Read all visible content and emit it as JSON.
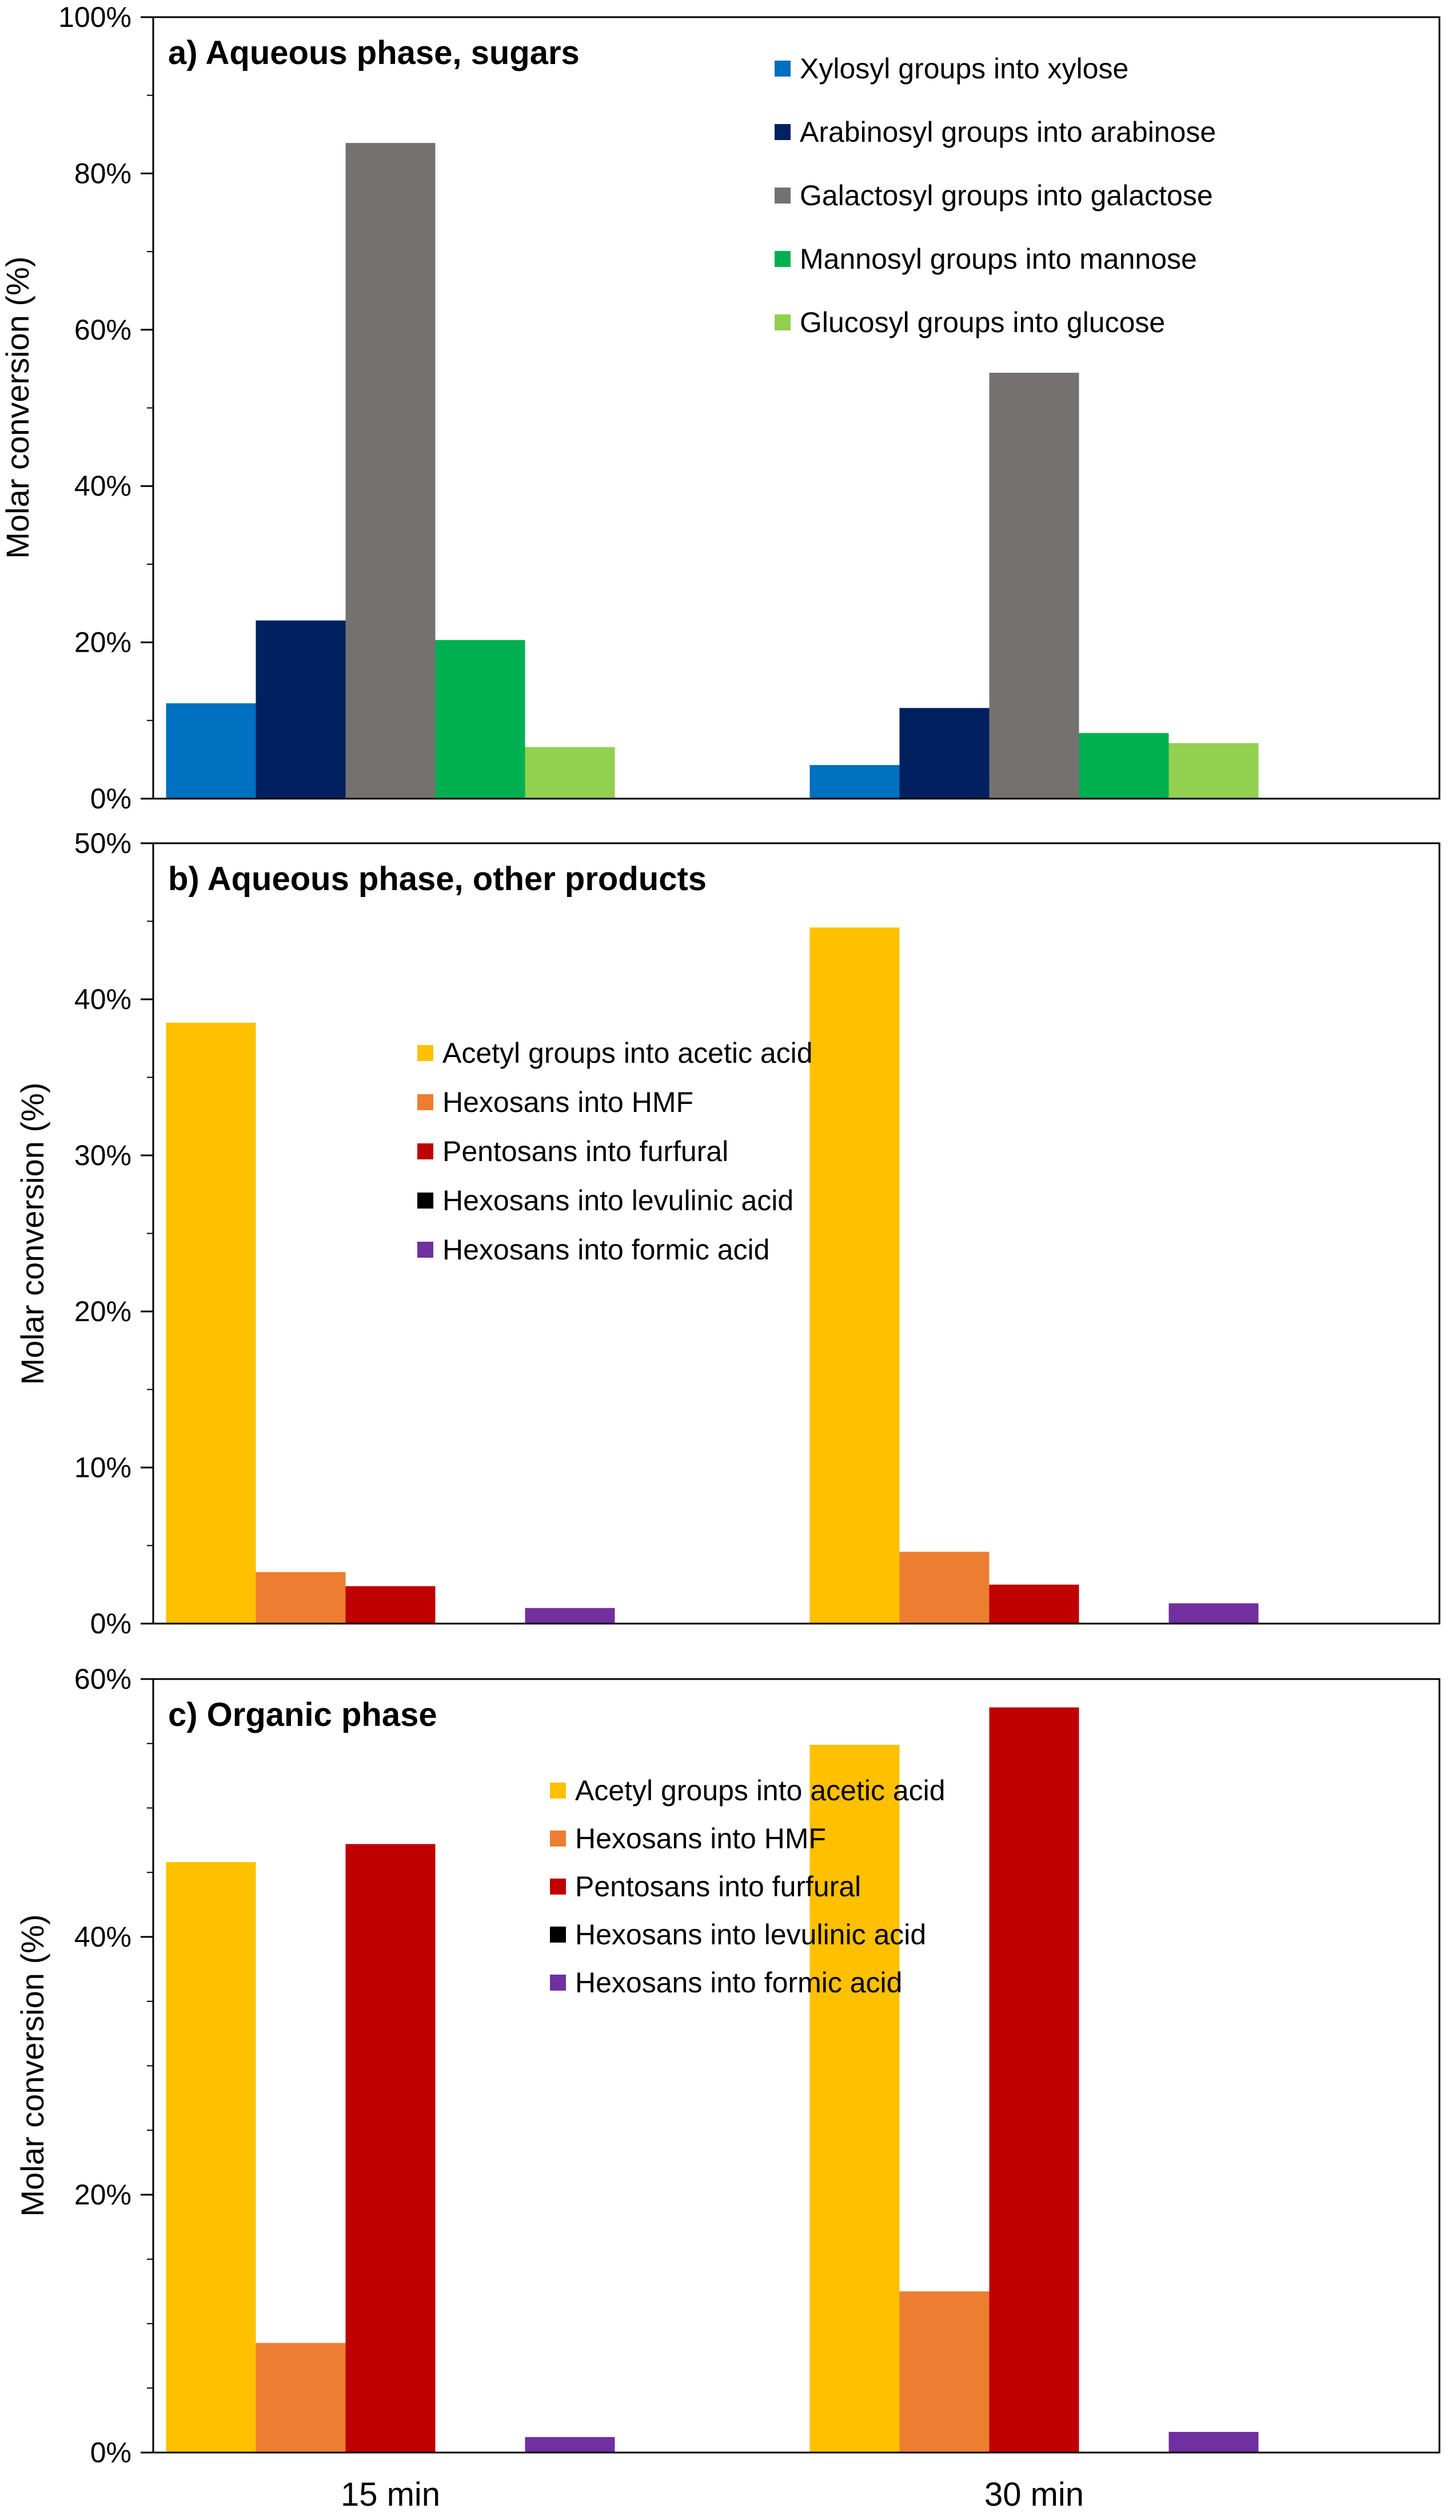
{
  "chart_data": [
    {
      "type": "bar",
      "title": "a) Aqueous phase, sugars",
      "xlabel": "",
      "ylabel": "Molar conversion (%)",
      "ylim": [
        0,
        100
      ],
      "yticks": [
        "0%",
        "20%",
        "40%",
        "60%",
        "80%",
        "100%"
      ],
      "categories": [
        "15 min",
        "30 min"
      ],
      "legend_position": "top-right",
      "series": [
        {
          "name": "Xylosyl groups into xylose",
          "color": "#0070C0",
          "values": [
            12.2,
            4.3
          ]
        },
        {
          "name": "Arabinosyl groups into arabinose",
          "color": "#002060",
          "values": [
            22.8,
            11.6
          ]
        },
        {
          "name": "Galactosyl groups into galactose",
          "color": "#767171",
          "values": [
            83.9,
            54.5
          ]
        },
        {
          "name": "Mannosyl groups into mannose",
          "color": "#00B050",
          "values": [
            20.3,
            8.4
          ]
        },
        {
          "name": "Glucosyl groups into glucose",
          "color": "#92D050",
          "values": [
            6.6,
            7.1
          ]
        }
      ]
    },
    {
      "type": "bar",
      "title": "b) Aqueous phase, other products",
      "xlabel": "",
      "ylabel": "Molar conversion (%)",
      "ylim": [
        0,
        50
      ],
      "yticks": [
        "0%",
        "10%",
        "20%",
        "30%",
        "40%",
        "50%"
      ],
      "categories": [
        "15 min",
        "30 min"
      ],
      "legend_position": "center-left",
      "series": [
        {
          "name": "Acetyl groups into acetic acid",
          "color": "#FFC000",
          "values": [
            38.5,
            44.6
          ]
        },
        {
          "name": "Hexosans into HMF",
          "color": "#ED7D31",
          "values": [
            3.3,
            4.6
          ]
        },
        {
          "name": "Pentosans into furfural",
          "color": "#C00000",
          "values": [
            2.4,
            2.5
          ]
        },
        {
          "name": "Hexosans into levulinic acid",
          "color": "#000000",
          "values": [
            0,
            0
          ]
        },
        {
          "name": "Hexosans into formic acid",
          "color": "#7030A0",
          "values": [
            1.0,
            1.3
          ]
        }
      ]
    },
    {
      "type": "bar",
      "title": "c) Organic phase",
      "xlabel": "",
      "ylabel": "Molar conversion (%)",
      "ylim": [
        0,
        60
      ],
      "yticks": [
        "0%",
        "20%",
        "40%",
        "60%"
      ],
      "categories": [
        "15 min",
        "30 min"
      ],
      "legend_position": "top-center",
      "series": [
        {
          "name": "Acetyl groups into acetic acid",
          "color": "#FFC000",
          "values": [
            45.8,
            54.9
          ]
        },
        {
          "name": "Hexosans into HMF",
          "color": "#ED7D31",
          "values": [
            8.5,
            12.5
          ]
        },
        {
          "name": "Pentosans into furfural",
          "color": "#C00000",
          "values": [
            47.2,
            57.8
          ]
        },
        {
          "name": "Hexosans into levulinic acid",
          "color": "#000000",
          "values": [
            0,
            0
          ]
        },
        {
          "name": "Hexosans into formic acid",
          "color": "#7030A0",
          "values": [
            1.2,
            1.6
          ]
        }
      ]
    }
  ]
}
